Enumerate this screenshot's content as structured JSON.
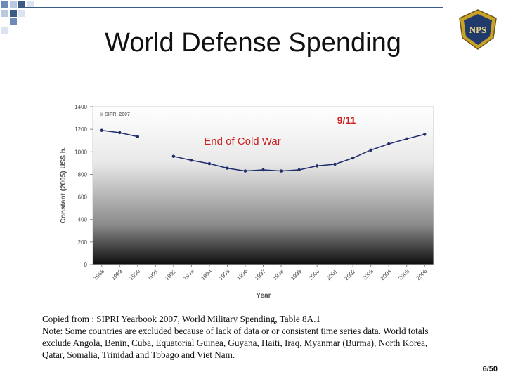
{
  "slide": {
    "title": "World Defense Spending",
    "page_number": "6/50",
    "logo_text": "NPS",
    "caption_lines": [
      "Copied from : SIPRI Yearbook 2007, World Military Spending, Table 8A.1",
      "Note: Some countries are excluded because of lack of data or or consistent time series data. World totals",
      "exclude Angola, Benin, Cuba, Equatorial Guinea, Guyana, Haiti, Iraq, Myanmar (Burma), North Korea,",
      "Qatar, Somalia, Trinidad and Tobago and Viet Nam."
    ]
  },
  "chart_data": {
    "type": "line",
    "title": "",
    "xlabel": "Year",
    "ylabel": "Constant (2005) US$ b.",
    "ylim": [
      0,
      1400
    ],
    "yticks": [
      0,
      200,
      400,
      600,
      800,
      1000,
      1200,
      1400
    ],
    "categories": [
      "1988",
      "1989",
      "1990",
      "1991",
      "1992",
      "1993",
      "1994",
      "1995",
      "1996",
      "1997",
      "1998",
      "1999",
      "2000",
      "2001",
      "2002",
      "2003",
      "2004",
      "2005",
      "2006"
    ],
    "series": [
      {
        "values": [
          1190,
          1170,
          1135,
          null,
          960,
          925,
          895,
          855,
          830,
          840,
          830,
          840,
          875,
          890,
          945,
          1015,
          1070,
          1115,
          1155
        ]
      }
    ],
    "copyright": "© SIPRI 2007",
    "annotations": [
      "9/11",
      "End of Cold War"
    ],
    "line_color": "#1f2d6b",
    "annotation_color": "#cc1f1f",
    "grid": false,
    "background": "white-to-black vertical gradient"
  }
}
